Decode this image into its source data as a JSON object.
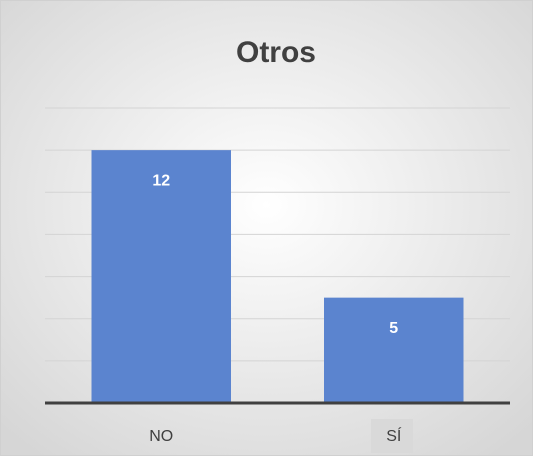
{
  "chart_data": {
    "type": "bar",
    "title": "Otros",
    "categories": [
      "NO",
      "SÍ"
    ],
    "values": [
      12,
      5
    ],
    "color": "#5b84cf",
    "ylim": [
      0,
      14
    ],
    "yticks": [
      0,
      2,
      4,
      6,
      8,
      10,
      12,
      14
    ],
    "grid": true
  }
}
